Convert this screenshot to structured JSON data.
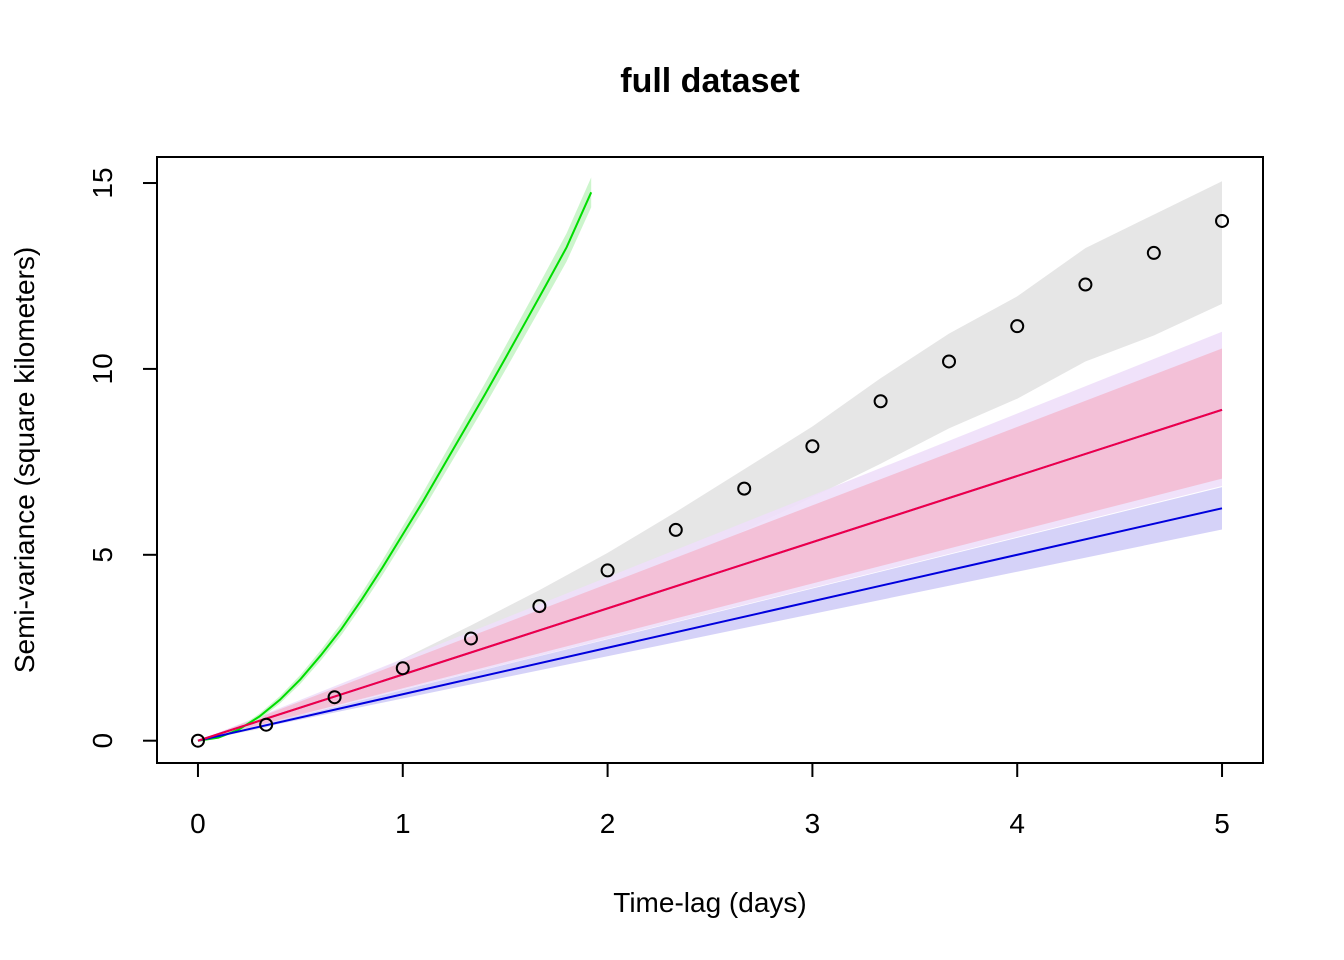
{
  "chart_data": {
    "type": "line",
    "title": "full dataset",
    "xlabel": "Time-lag (days)",
    "ylabel": "Semi-variance (square kilometers)",
    "xlim": [
      -0.2,
      5.2
    ],
    "ylim": [
      -0.6,
      15.7
    ],
    "x_ticks": [
      0,
      1,
      2,
      3,
      4,
      5
    ],
    "y_ticks": [
      0,
      5,
      10,
      15
    ],
    "x_tick_labels": [
      "0",
      "1",
      "2",
      "3",
      "4",
      "5"
    ],
    "y_tick_labels": [
      "0",
      "5",
      "10",
      "15"
    ],
    "grid": false,
    "legend": "none",
    "empirical_points": {
      "x": [
        0,
        0.333,
        0.667,
        1,
        1.333,
        1.667,
        2,
        2.333,
        2.667,
        3,
        3.333,
        3.667,
        4,
        4.333,
        4.667,
        5
      ],
      "y": [
        0,
        0.43,
        1.17,
        1.95,
        2.75,
        3.62,
        4.58,
        5.67,
        6.78,
        7.92,
        9.13,
        10.2,
        11.15,
        12.27,
        13.12,
        13.98
      ]
    },
    "empirical_band": {
      "color": "#e6e6e6",
      "x": [
        0,
        0.333,
        0.667,
        1,
        1.333,
        1.667,
        2,
        2.333,
        2.667,
        3,
        3.333,
        3.667,
        4,
        4.333,
        4.667,
        5
      ],
      "lower": [
        0,
        0.35,
        1.0,
        1.7,
        2.4,
        3.1,
        3.85,
        4.75,
        5.65,
        6.55,
        7.45,
        8.4,
        9.2,
        10.2,
        10.9,
        11.75
      ],
      "upper": [
        0,
        0.52,
        1.35,
        2.2,
        3.1,
        4.05,
        5.05,
        6.15,
        7.3,
        8.45,
        9.75,
        10.95,
        11.95,
        13.25,
        14.15,
        15.05
      ]
    },
    "series": [
      {
        "color": "#00dd00",
        "band_color": "#ccf5cc",
        "x": [
          0,
          0.1,
          0.2,
          0.3,
          0.4,
          0.5,
          0.6,
          0.7,
          0.8,
          0.9,
          1.0,
          1.1,
          1.2,
          1.3,
          1.4,
          1.5,
          1.6,
          1.7,
          1.8,
          1.92
        ],
        "y": [
          0,
          0.08,
          0.3,
          0.65,
          1.1,
          1.65,
          2.3,
          3.0,
          3.8,
          4.65,
          5.55,
          6.45,
          7.4,
          8.35,
          9.3,
          10.28,
          11.27,
          12.26,
          13.27,
          14.75
        ],
        "band_halfwidth": [
          0,
          0.02,
          0.05,
          0.08,
          0.1,
          0.12,
          0.14,
          0.16,
          0.18,
          0.2,
          0.22,
          0.24,
          0.26,
          0.28,
          0.3,
          0.32,
          0.34,
          0.36,
          0.38,
          0.4
        ]
      },
      {
        "color": "#0000dd",
        "band_color": "#d0cdf7",
        "x": [
          0,
          5
        ],
        "y": [
          0,
          6.25
        ],
        "lower": [
          0,
          5.68
        ],
        "upper": [
          0,
          6.82
        ]
      },
      {
        "color": "#8b00ff",
        "band_color": "#eedff9",
        "x": [
          0,
          5
        ],
        "y": [
          0,
          8.9
        ],
        "lower": [
          0,
          6.85
        ],
        "upper": [
          0,
          11.0
        ]
      },
      {
        "color": "#ee0044",
        "band_color": "#f3bcd3",
        "x": [
          0,
          5
        ],
        "y": [
          0,
          8.9
        ],
        "lower": [
          0,
          7.05
        ],
        "upper": [
          0,
          10.55
        ]
      }
    ]
  }
}
